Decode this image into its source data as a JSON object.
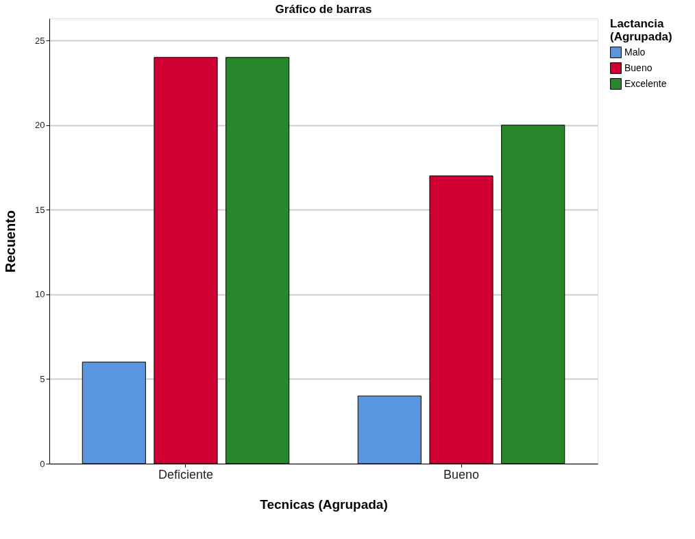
{
  "chart_data": {
    "type": "bar",
    "title": "Gráfico de barras",
    "xlabel": "Tecnicas (Agrupada)",
    "ylabel": "Recuento",
    "legend_title": "Lactancia (Agrupada)",
    "categories": [
      "Deficiente",
      "Bueno"
    ],
    "series": [
      {
        "name": "Malo",
        "color": "#5a96e0",
        "values": [
          6,
          4
        ]
      },
      {
        "name": "Bueno",
        "color": "#d20032",
        "values": [
          24,
          17
        ]
      },
      {
        "name": "Excelente",
        "color": "#2a862a",
        "values": [
          24,
          20
        ]
      }
    ],
    "ylim": [
      0,
      26.3
    ],
    "yticks": [
      0,
      5,
      10,
      15,
      20,
      25
    ],
    "grid": "y",
    "legend": "top right"
  }
}
